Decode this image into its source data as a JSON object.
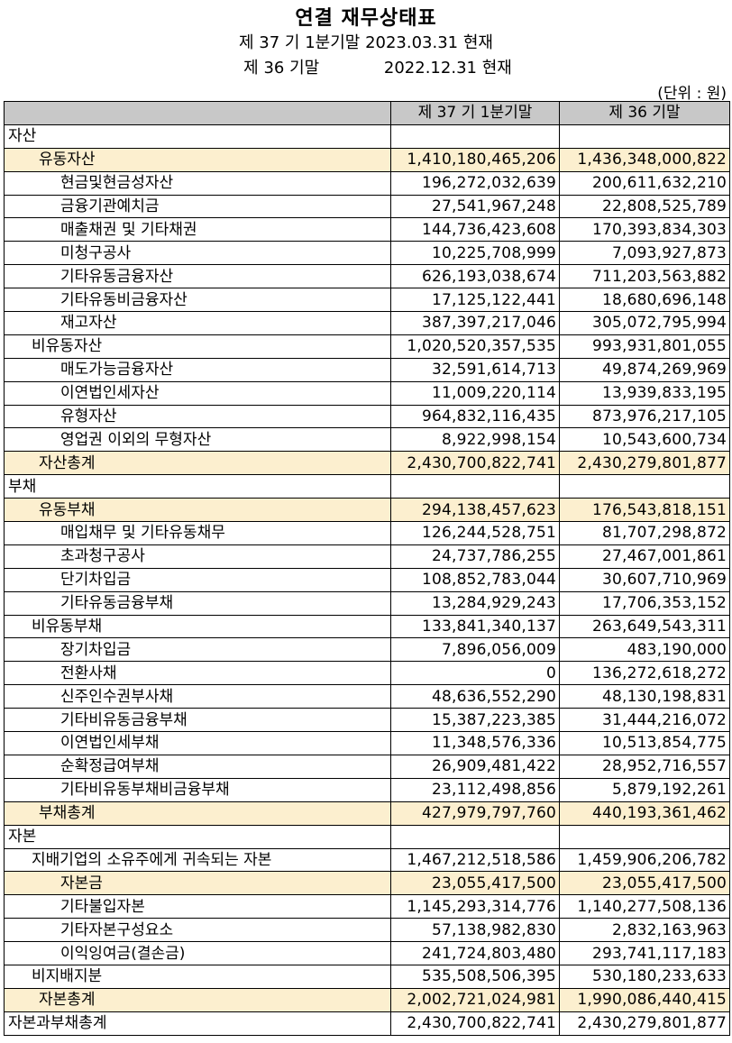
{
  "title": "연결 재무상태표",
  "subtitle1": {
    "period": "제 37 기 1분기말",
    "date": "2023.03.31 현재"
  },
  "subtitle2": {
    "period": "제 36 기말",
    "date": "2022.12.31 현재"
  },
  "unit": "(단위 : 원)",
  "columns": [
    "",
    "제 37 기 1분기말",
    "제 36 기말"
  ],
  "highlight_color": "#fcefcf",
  "header_color": "#c8c8c8",
  "rows": [
    {
      "label": "자산",
      "level": 0,
      "highlight": false,
      "cur": "",
      "prev": ""
    },
    {
      "label": "유동자산",
      "level": 1,
      "highlight": true,
      "cur": "1,410,180,465,206",
      "prev": "1,436,348,000,822"
    },
    {
      "label": "현금및현금성자산",
      "level": 2,
      "highlight": false,
      "cur": "196,272,032,639",
      "prev": "200,611,632,210"
    },
    {
      "label": "금융기관예치금",
      "level": 2,
      "highlight": false,
      "cur": "27,541,967,248",
      "prev": "22,808,525,789"
    },
    {
      "label": "매출채권 및 기타채권",
      "level": 2,
      "highlight": false,
      "cur": "144,736,423,608",
      "prev": "170,393,834,303"
    },
    {
      "label": "미청구공사",
      "level": 2,
      "highlight": false,
      "cur": "10,225,708,999",
      "prev": "7,093,927,873"
    },
    {
      "label": "기타유동금융자산",
      "level": 2,
      "highlight": false,
      "cur": "626,193,038,674",
      "prev": "711,203,563,882"
    },
    {
      "label": "기타유동비금융자산",
      "level": 2,
      "highlight": false,
      "cur": "17,125,122,441",
      "prev": "18,680,696,148"
    },
    {
      "label": "재고자산",
      "level": 2,
      "highlight": false,
      "cur": "387,397,217,046",
      "prev": "305,072,795,994"
    },
    {
      "label": "비유동자산",
      "level": 1,
      "highlight": false,
      "cur": "1,020,520,357,535",
      "prev": "993,931,801,055"
    },
    {
      "label": "매도가능금융자산",
      "level": 2,
      "highlight": false,
      "cur": "32,591,614,713",
      "prev": "49,874,269,969"
    },
    {
      "label": "이연법인세자산",
      "level": 2,
      "highlight": false,
      "cur": "11,009,220,114",
      "prev": "13,939,833,195"
    },
    {
      "label": "유형자산",
      "level": 2,
      "highlight": false,
      "cur": "964,832,116,435",
      "prev": "873,976,217,105"
    },
    {
      "label": "영업권 이외의 무형자산",
      "level": 2,
      "highlight": false,
      "cur": "8,922,998,154",
      "prev": "10,543,600,734"
    },
    {
      "label": "자산총계",
      "level": 1,
      "highlight": true,
      "cur": "2,430,700,822,741",
      "prev": "2,430,279,801,877"
    },
    {
      "label": "부채",
      "level": 0,
      "highlight": false,
      "cur": "",
      "prev": ""
    },
    {
      "label": "유동부채",
      "level": 1,
      "highlight": true,
      "cur": "294,138,457,623",
      "prev": "176,543,818,151"
    },
    {
      "label": "매입채무 및 기타유동채무",
      "level": 2,
      "highlight": false,
      "cur": "126,244,528,751",
      "prev": "81,707,298,872"
    },
    {
      "label": "초과청구공사",
      "level": 2,
      "highlight": false,
      "cur": "24,737,786,255",
      "prev": "27,467,001,861"
    },
    {
      "label": "단기차입금",
      "level": 2,
      "highlight": false,
      "cur": "108,852,783,044",
      "prev": "30,607,710,969"
    },
    {
      "label": "기타유동금융부채",
      "level": 2,
      "highlight": false,
      "cur": "13,284,929,243",
      "prev": "17,706,353,152"
    },
    {
      "label": "비유동부채",
      "level": 1,
      "highlight": false,
      "cur": "133,841,340,137",
      "prev": "263,649,543,311"
    },
    {
      "label": "장기차입금",
      "level": 2,
      "highlight": false,
      "cur": "7,896,056,009",
      "prev": "483,190,000"
    },
    {
      "label": "전환사채",
      "level": 2,
      "highlight": false,
      "cur": "0",
      "prev": "136,272,618,272"
    },
    {
      "label": "신주인수권부사채",
      "level": 2,
      "highlight": false,
      "cur": "48,636,552,290",
      "prev": "48,130,198,831"
    },
    {
      "label": "기타비유동금융부채",
      "level": 2,
      "highlight": false,
      "cur": "15,387,223,385",
      "prev": "31,444,216,072"
    },
    {
      "label": "이연법인세부채",
      "level": 2,
      "highlight": false,
      "cur": "11,348,576,336",
      "prev": "10,513,854,775"
    },
    {
      "label": "순확정급여부채",
      "level": 2,
      "highlight": false,
      "cur": "26,909,481,422",
      "prev": "28,952,716,557"
    },
    {
      "label": "기타비유동부채비금융부채",
      "level": 2,
      "highlight": false,
      "cur": "23,112,498,856",
      "prev": "5,879,192,261"
    },
    {
      "label": "부채총계",
      "level": 1,
      "highlight": true,
      "cur": "427,979,797,760",
      "prev": "440,193,361,462"
    },
    {
      "label": "자본",
      "level": 0,
      "highlight": false,
      "cur": "",
      "prev": ""
    },
    {
      "label": "지배기업의 소유주에게 귀속되는 자본",
      "level": 1,
      "highlight": false,
      "cur": "1,467,212,518,586",
      "prev": "1,459,906,206,782"
    },
    {
      "label": "자본금",
      "level": 2,
      "highlight": true,
      "cur": "23,055,417,500",
      "prev": "23,055,417,500"
    },
    {
      "label": "기타불입자본",
      "level": 2,
      "highlight": false,
      "cur": "1,145,293,314,776",
      "prev": "1,140,277,508,136"
    },
    {
      "label": "기타자본구성요소",
      "level": 2,
      "highlight": false,
      "cur": "57,138,982,830",
      "prev": "2,832,163,963"
    },
    {
      "label": "이익잉여금(결손금)",
      "level": 2,
      "highlight": false,
      "cur": "241,724,803,480",
      "prev": "293,741,117,183"
    },
    {
      "label": "비지배지분",
      "level": 1,
      "highlight": false,
      "cur": "535,508,506,395",
      "prev": "530,180,233,633"
    },
    {
      "label": "자본총계",
      "level": 1,
      "highlight": true,
      "cur": "2,002,721,024,981",
      "prev": "1,990,086,440,415"
    },
    {
      "label": "자본과부채총계",
      "level": 0,
      "highlight": false,
      "cur": "2,430,700,822,741",
      "prev": "2,430,279,801,877"
    }
  ]
}
